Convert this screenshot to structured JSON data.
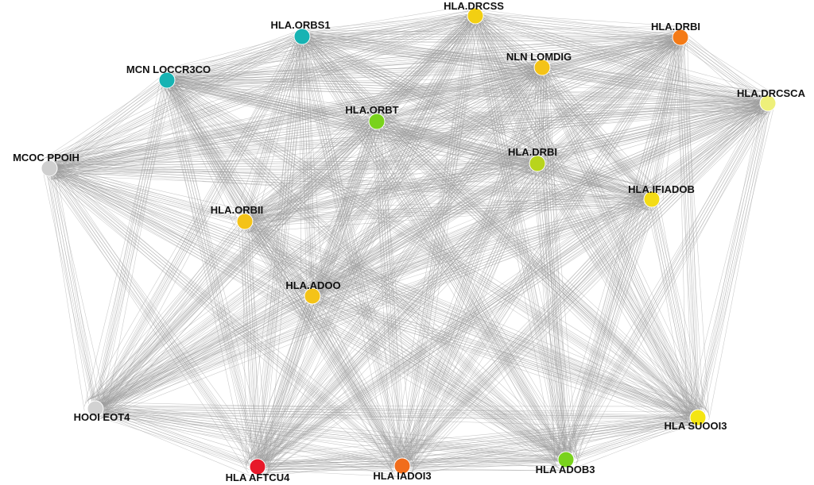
{
  "network": {
    "nodes": [
      {
        "id": "n1",
        "label": "HLA.ORBS1",
        "color": "#17b3b3"
      },
      {
        "id": "n2",
        "label": "HLA.DRCSS",
        "color": "#f2cf12"
      },
      {
        "id": "n3",
        "label": "HLA.DRBI",
        "color": "#f47a16"
      },
      {
        "id": "n4",
        "label": "MCN LOCCR3CO",
        "color": "#17b3b3"
      },
      {
        "id": "n5",
        "label": "NLN LOMDIG",
        "color": "#f4c318"
      },
      {
        "id": "n6",
        "label": "HLA.DRCSCA",
        "color": "#eef07a"
      },
      {
        "id": "n7",
        "label": "HLA.ORBT",
        "color": "#79d21c"
      },
      {
        "id": "n8",
        "label": "MCOC PPOIH",
        "color": "#cfcfcf"
      },
      {
        "id": "n9",
        "label": "HLA.DRBI",
        "color": "#b8d41d"
      },
      {
        "id": "n10",
        "label": "HLA.IFIADOB",
        "color": "#f4dc16"
      },
      {
        "id": "n11",
        "label": "HLA.ORBII",
        "color": "#f4c318"
      },
      {
        "id": "n12",
        "label": "HLA.ADOO",
        "color": "#f4c318"
      },
      {
        "id": "n13",
        "label": "HOOI EOT4",
        "color": "#d2d2d2"
      },
      {
        "id": "n14",
        "label": "HLA SUOOI3",
        "color": "#f4e512"
      },
      {
        "id": "n15",
        "label": "HLA AFTCU4",
        "color": "#e7192a"
      },
      {
        "id": "n16",
        "label": "HLA IADOI3",
        "color": "#f16d1c"
      },
      {
        "id": "n17",
        "label": "HLA ADOB3",
        "color": "#79d21c"
      }
    ]
  }
}
